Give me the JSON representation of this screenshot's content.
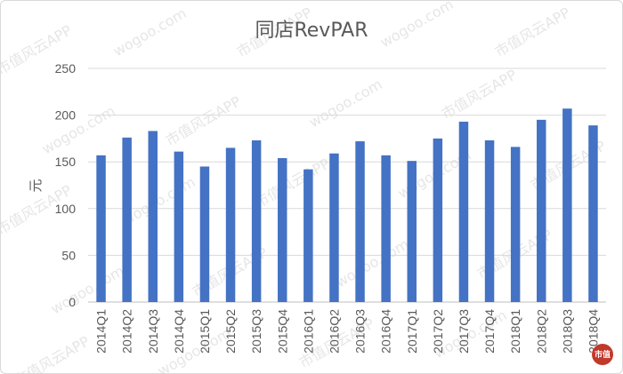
{
  "chart_data": {
    "type": "bar",
    "title": "同店RevPAR",
    "ylabel": "元",
    "xlabel": "",
    "ylim": [
      0,
      250
    ],
    "yticks": [
      0,
      50,
      100,
      150,
      200,
      250
    ],
    "grid": true,
    "legend": "none",
    "bar_color": "#4472C4",
    "categories": [
      "2014Q1",
      "2014Q2",
      "2014Q3",
      "2014Q4",
      "2015Q1",
      "2015Q2",
      "2015Q3",
      "2015Q4",
      "2016Q1",
      "2016Q2",
      "2016Q3",
      "2016Q4",
      "2017Q1",
      "2017Q2",
      "2017Q3",
      "2017Q4",
      "2018Q1",
      "2018Q2",
      "2018Q3",
      "2018Q4"
    ],
    "values": [
      157,
      176,
      183,
      161,
      145,
      165,
      173,
      154,
      142,
      159,
      172,
      157,
      151,
      175,
      193,
      173,
      166,
      195,
      207,
      189
    ]
  },
  "watermark": {
    "text": "市值风云APP",
    "site": "wogoo.com",
    "logo_text": "市值"
  }
}
